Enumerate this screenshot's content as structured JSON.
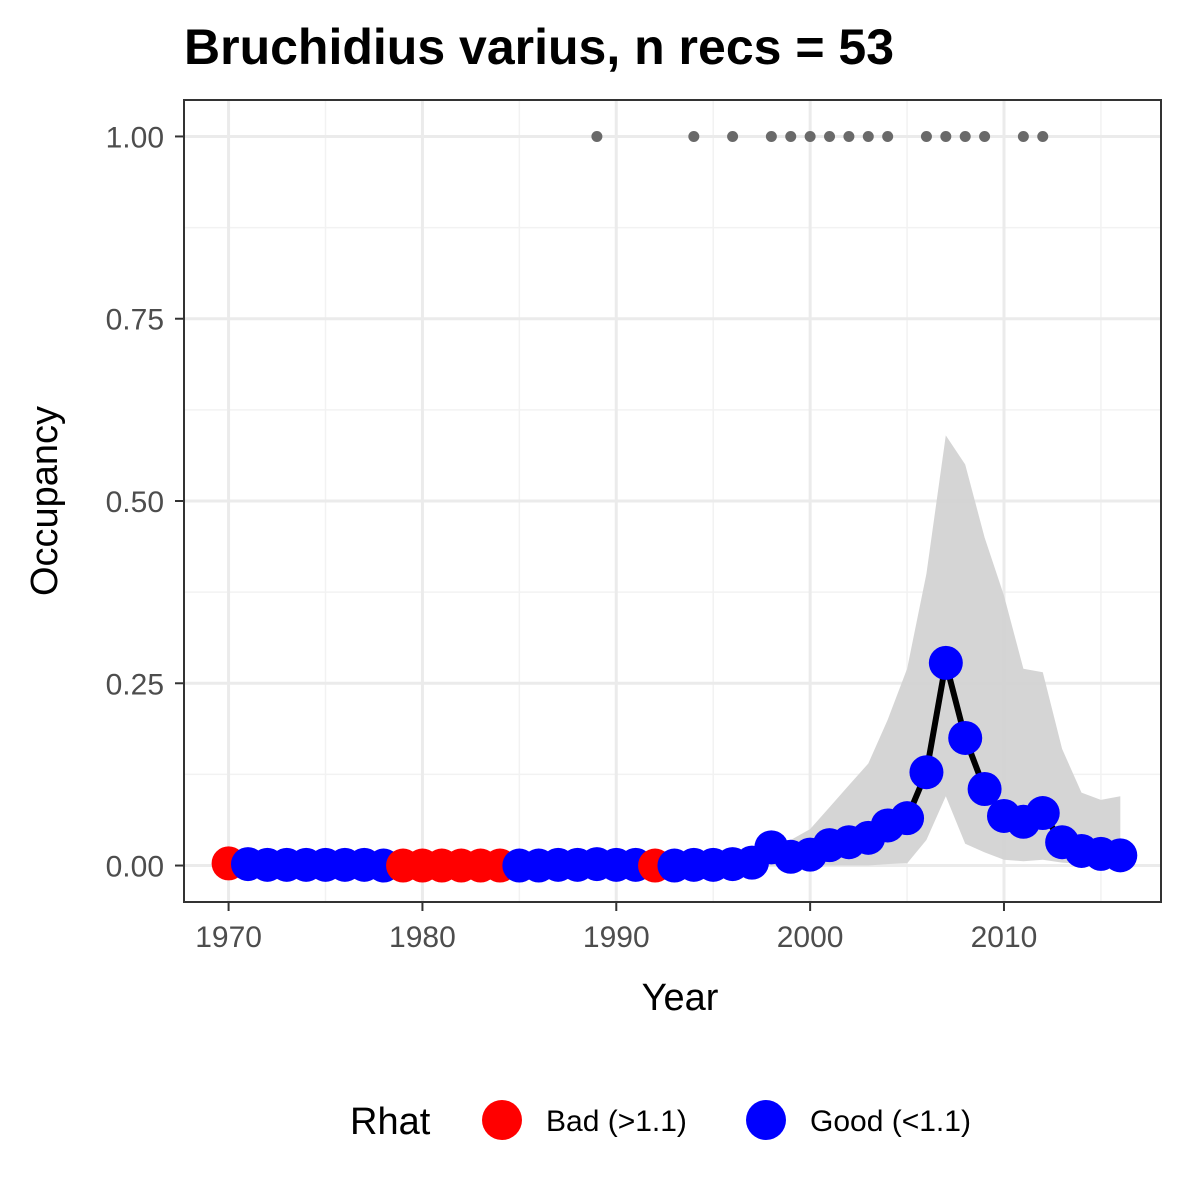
{
  "chart_data": {
    "type": "line",
    "title": "Bruchidius varius, n recs = 53",
    "xlabel": "Year",
    "ylabel": "Occupancy",
    "xlim": [
      1967.7,
      2018.1
    ],
    "ylim": [
      -0.05,
      1.05
    ],
    "x_ticks": [
      1970,
      1980,
      1990,
      2000,
      2010
    ],
    "x_tick_labels": [
      "1970",
      "1980",
      "1990",
      "2000",
      "2010"
    ],
    "y_ticks": [
      0,
      0.25,
      0.5,
      0.75,
      1.0
    ],
    "y_tick_labels": [
      "0.00",
      "0.25",
      "0.50",
      "0.75",
      "1.00"
    ],
    "grid": true,
    "legend": {
      "title": "Rhat",
      "position": "bottom",
      "entries": [
        {
          "label": "Bad (>1.1)",
          "color": "#ff0000"
        },
        {
          "label": "Good (<1.1)",
          "color": "#0000ff"
        }
      ]
    },
    "colors": {
      "bad": "#ff0000",
      "good": "#0000ff",
      "line": "#000000",
      "ribbon": "#d3d3d3",
      "record_points": "#696969"
    },
    "series": [
      {
        "x": [
          1970,
          1971,
          1972,
          1973,
          1974,
          1975,
          1976,
          1977,
          1978,
          1979,
          1980,
          1981,
          1982,
          1983,
          1984,
          1985,
          1986,
          1987,
          1988,
          1989,
          1990,
          1991,
          1992,
          1993,
          1994,
          1995,
          1996,
          1997,
          1998,
          1999,
          2000,
          2001,
          2002,
          2003,
          2004,
          2005,
          2006,
          2007,
          2008,
          2009,
          2010,
          2011,
          2012,
          2013,
          2014,
          2015,
          2016
        ],
        "values": [
          0.003,
          0.002,
          0.001,
          0.001,
          0.001,
          0.001,
          0.001,
          0.001,
          0.0,
          0.0,
          0.0,
          0.0,
          0.0,
          0.0,
          0.0,
          0.0,
          0.0,
          0.001,
          0.001,
          0.002,
          0.001,
          0.001,
          0.0,
          0.0,
          0.001,
          0.001,
          0.002,
          0.004,
          0.025,
          0.012,
          0.015,
          0.028,
          0.032,
          0.038,
          0.055,
          0.065,
          0.128,
          0.278,
          0.175,
          0.105,
          0.068,
          0.06,
          0.072,
          0.032,
          0.02,
          0.016,
          0.014
        ],
        "rhat": [
          "Bad",
          "Good",
          "Good",
          "Good",
          "Good",
          "Good",
          "Good",
          "Good",
          "Good",
          "Bad",
          "Bad",
          "Bad",
          "Bad",
          "Bad",
          "Bad",
          "Good",
          "Good",
          "Good",
          "Good",
          "Good",
          "Good",
          "Good",
          "Bad",
          "Good",
          "Good",
          "Good",
          "Good",
          "Good",
          "Good",
          "Good",
          "Good",
          "Good",
          "Good",
          "Good",
          "Good",
          "Good",
          "Good",
          "Good",
          "Good",
          "Good",
          "Good",
          "Good",
          "Good",
          "Good",
          "Good",
          "Good",
          "Good"
        ]
      }
    ],
    "ribbon": {
      "x": [
        1970,
        1971,
        1972,
        1973,
        1974,
        1975,
        1976,
        1977,
        1978,
        1979,
        1980,
        1981,
        1982,
        1983,
        1984,
        1985,
        1986,
        1987,
        1988,
        1989,
        1990,
        1991,
        1992,
        1993,
        1994,
        1995,
        1996,
        1997,
        1998,
        1999,
        2000,
        2001,
        2002,
        2003,
        2004,
        2005,
        2006,
        2007,
        2008,
        2009,
        2010,
        2011,
        2012,
        2013,
        2014,
        2015,
        2016
      ],
      "lower": [
        0,
        0,
        0,
        0,
        0,
        0,
        0,
        0,
        0,
        0,
        0,
        0,
        0,
        0,
        0,
        0,
        0,
        0,
        0,
        0,
        0,
        0,
        0,
        0,
        0,
        0,
        0,
        0,
        0,
        0,
        0,
        0,
        0,
        0,
        0.002,
        0.003,
        0.035,
        0.095,
        0.03,
        0.018,
        0.008,
        0.006,
        0.008,
        0.004,
        0.002,
        0.002,
        0.002
      ],
      "upper": [
        0.01,
        0.008,
        0.006,
        0.006,
        0.006,
        0.006,
        0.006,
        0.006,
        0.005,
        0.005,
        0.005,
        0.005,
        0.005,
        0.005,
        0.005,
        0.005,
        0.005,
        0.006,
        0.006,
        0.008,
        0.006,
        0.006,
        0.005,
        0.005,
        0.006,
        0.008,
        0.01,
        0.015,
        0.03,
        0.035,
        0.05,
        0.08,
        0.11,
        0.14,
        0.2,
        0.27,
        0.4,
        0.59,
        0.55,
        0.45,
        0.37,
        0.27,
        0.265,
        0.16,
        0.1,
        0.09,
        0.095
      ]
    },
    "record_years": [
      1989,
      1994,
      1996,
      1998,
      1999,
      2000,
      2001,
      2002,
      2003,
      2004,
      2006,
      2007,
      2008,
      2009,
      2011,
      2012
    ],
    "record_y": 1.0
  }
}
